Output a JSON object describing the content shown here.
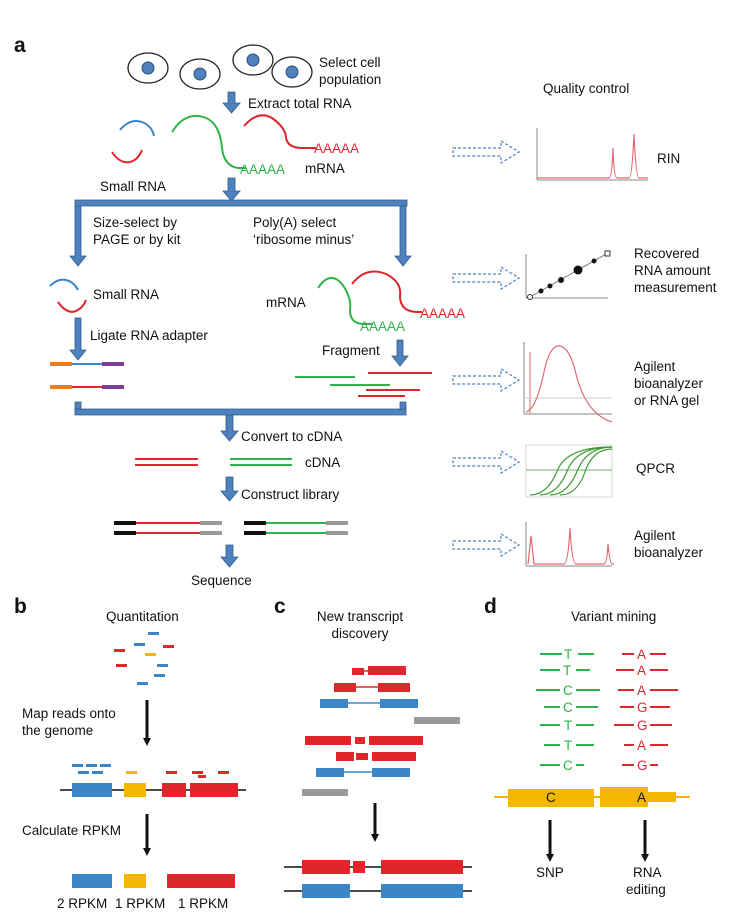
{
  "panels": {
    "a": "a",
    "b": "b",
    "c": "c",
    "d": "d"
  },
  "panel_a": {
    "select_cells": [
      "Select cell",
      "population"
    ],
    "extract": "Extract total RNA",
    "polyA_red": "AAAAA",
    "mrna": "mRNA",
    "polyA_green": "AAAAA",
    "small_rna": "Small RNA",
    "size_select": [
      "Size-select by",
      "PAGE or by kit"
    ],
    "polyA_select": [
      "Poly(A) select",
      "‘ribosome minus’"
    ],
    "small_rna_2": "Small RNA",
    "ligate": "Ligate RNA adapter",
    "mrna_2": "mRNA",
    "polyA_green_2": "AAAAA",
    "polyA_red_2": "AAAAA",
    "fragment": "Fragment",
    "convert": "Convert to cDNA",
    "cdna": "cDNA",
    "construct": "Construct library",
    "sequence": "Sequence"
  },
  "qc": {
    "title": "Quality control",
    "rin": "RIN",
    "recovered": [
      "Recovered",
      "RNA amount",
      "measurement"
    ],
    "agilent1": [
      "Agilent",
      "bioanalyzer",
      "or RNA gel"
    ],
    "qpcr": "QPCR",
    "agilent2": [
      "Agilent",
      "bioanalyzer"
    ]
  },
  "panel_b": {
    "title": "Quantitation",
    "map": [
      "Map reads onto",
      "the genome"
    ],
    "calc": "Calculate RPKM",
    "rpkm": [
      "2 RPKM",
      "1 RPKM",
      "1 RPKM"
    ]
  },
  "panel_c": {
    "title": [
      "New transcript",
      "discovery"
    ]
  },
  "panel_d": {
    "title": "Variant mining",
    "green_bases": [
      "T",
      "T",
      "C",
      "C",
      "T",
      "T",
      "C"
    ],
    "red_bases": [
      "A",
      "A",
      "A",
      "G",
      "G",
      "A",
      "G"
    ],
    "ref_left": "C",
    "ref_right": "A",
    "snp": "SNP",
    "editing": [
      "RNA",
      "editing"
    ]
  },
  "colors": {
    "arrow_blue": "#4f81bd",
    "red": "#e0262b",
    "green": "#2fb34a",
    "blue": "#3c86c8",
    "yellow": "#f3b700",
    "gray": "#999999",
    "orange": "#f07d1a",
    "purple": "#7a3f98"
  }
}
